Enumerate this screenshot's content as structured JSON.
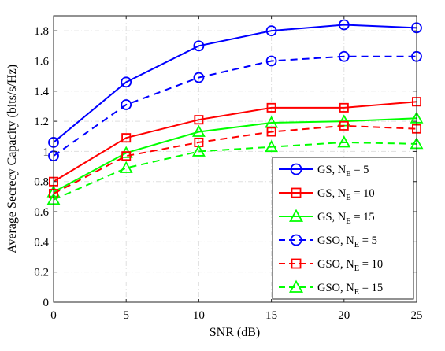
{
  "chart_data": {
    "type": "line",
    "xlabel": "SNR (dB)",
    "ylabel": "Average Secrecy Capacity (bits/s/Hz)",
    "xlim": [
      0,
      25
    ],
    "ylim": [
      0,
      1.9
    ],
    "xticks": [
      0,
      5,
      10,
      15,
      20,
      25
    ],
    "xtick_labels": [
      "0",
      "5",
      "10",
      "15",
      "20",
      "25"
    ],
    "yticks": [
      0,
      0.2,
      0.4,
      0.6,
      0.8,
      1.0,
      1.2,
      1.4,
      1.6,
      1.8
    ],
    "ytick_labels": [
      "0",
      "0.2",
      "0.4",
      "0.6",
      "0.8",
      "1",
      "1.2",
      "1.4",
      "1.6",
      "1.8"
    ],
    "grid": true,
    "legend_position": "bottom-right",
    "x": [
      0,
      5,
      10,
      15,
      20,
      25
    ],
    "series": [
      {
        "name": "GS, N_E = 5",
        "label_main": "GS, N",
        "label_sub": "E",
        "label_tail": " = 5",
        "color": "#0000ff",
        "marker": "circle",
        "dash": "solid",
        "values": [
          1.06,
          1.46,
          1.7,
          1.8,
          1.84,
          1.82
        ]
      },
      {
        "name": "GS, N_E = 10",
        "label_main": "GS, N",
        "label_sub": "E",
        "label_tail": " = 10",
        "color": "#ff0000",
        "marker": "square",
        "dash": "solid",
        "values": [
          0.8,
          1.09,
          1.21,
          1.29,
          1.29,
          1.33
        ]
      },
      {
        "name": "GS, N_E = 15",
        "label_main": "GS, N",
        "label_sub": "E",
        "label_tail": " = 15",
        "color": "#00ff00",
        "marker": "triangle",
        "dash": "solid",
        "values": [
          0.73,
          0.99,
          1.13,
          1.19,
          1.2,
          1.22
        ]
      },
      {
        "name": "GSO, N_E = 5",
        "label_main": "GSO, N",
        "label_sub": "E",
        "label_tail": " = 5",
        "color": "#0000ff",
        "marker": "circle",
        "dash": "dashed",
        "values": [
          0.97,
          1.31,
          1.49,
          1.6,
          1.63,
          1.63
        ]
      },
      {
        "name": "GSO, N_E = 10",
        "label_main": "GSO, N",
        "label_sub": "E",
        "label_tail": " = 10",
        "color": "#ff0000",
        "marker": "square",
        "dash": "dashed",
        "values": [
          0.72,
          0.97,
          1.06,
          1.13,
          1.17,
          1.15
        ]
      },
      {
        "name": "GSO, N_E = 15",
        "label_main": "GSO, N",
        "label_sub": "E",
        "label_tail": " = 15",
        "color": "#00ff00",
        "marker": "triangle",
        "dash": "dashed",
        "values": [
          0.68,
          0.89,
          1.0,
          1.03,
          1.06,
          1.05
        ]
      }
    ]
  }
}
